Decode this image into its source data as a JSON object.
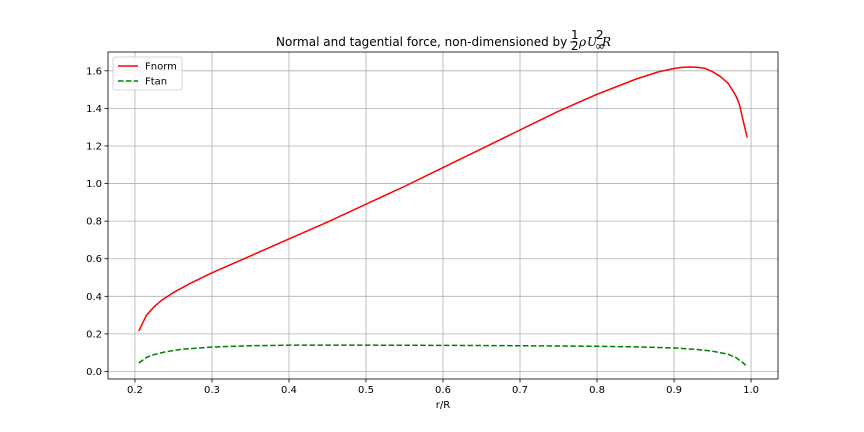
{
  "chart_data": {
    "type": "line",
    "title_text": "Normal and tagential force, non-dimensioned by",
    "title_math": {
      "frac_num": "1",
      "frac_den": "2",
      "rho": "ρ",
      "U": "U",
      "sup": "2",
      "sub": "∞",
      "R": "R"
    },
    "xlabel": "r/R",
    "ylabel": "",
    "xlim": [
      0.165,
      1.035
    ],
    "ylim": [
      -0.04,
      1.7
    ],
    "xticks": [
      "0.2",
      "0.3",
      "0.4",
      "0.5",
      "0.6",
      "0.7",
      "0.8",
      "0.9",
      "1.0"
    ],
    "yticks": [
      "0.0",
      "0.2",
      "0.4",
      "0.6",
      "0.8",
      "1.0",
      "1.2",
      "1.4",
      "1.6"
    ],
    "grid": true,
    "legend_position": "top-left",
    "series": [
      {
        "name": "Fnorm",
        "color": "#ff0000",
        "dash": "solid",
        "x": [
          0.205,
          0.215,
          0.225,
          0.235,
          0.25,
          0.27,
          0.3,
          0.35,
          0.4,
          0.45,
          0.5,
          0.55,
          0.6,
          0.65,
          0.7,
          0.75,
          0.8,
          0.85,
          0.88,
          0.9,
          0.91,
          0.92,
          0.93,
          0.94,
          0.95,
          0.96,
          0.97,
          0.98,
          0.985,
          0.99,
          0.995
        ],
        "values": [
          0.215,
          0.3,
          0.345,
          0.38,
          0.42,
          0.465,
          0.525,
          0.615,
          0.705,
          0.795,
          0.89,
          0.985,
          1.085,
          1.185,
          1.285,
          1.385,
          1.475,
          1.555,
          1.595,
          1.612,
          1.618,
          1.62,
          1.619,
          1.613,
          1.595,
          1.57,
          1.535,
          1.47,
          1.42,
          1.33,
          1.245
        ]
      },
      {
        "name": "Ftan",
        "color": "#008000",
        "dash": "dashed",
        "x": [
          0.205,
          0.215,
          0.225,
          0.24,
          0.26,
          0.3,
          0.35,
          0.4,
          0.5,
          0.6,
          0.7,
          0.8,
          0.85,
          0.9,
          0.93,
          0.95,
          0.97,
          0.98,
          0.99,
          0.995
        ],
        "values": [
          0.045,
          0.075,
          0.09,
          0.105,
          0.118,
          0.13,
          0.137,
          0.14,
          0.14,
          0.139,
          0.137,
          0.134,
          0.131,
          0.125,
          0.117,
          0.108,
          0.092,
          0.075,
          0.045,
          0.025
        ]
      }
    ]
  }
}
